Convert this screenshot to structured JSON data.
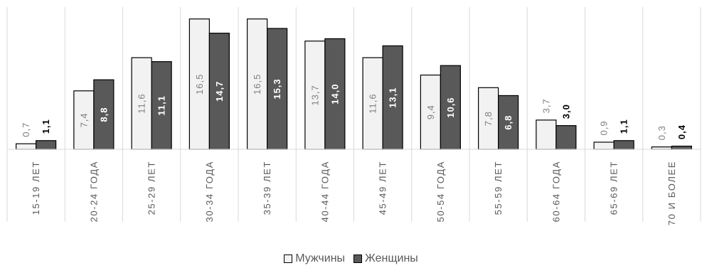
{
  "chart_data": {
    "type": "bar",
    "categories": [
      "15-19 ЛЕТ",
      "20-24 ГОДА",
      "25-29 ЛЕТ",
      "30-34 ГОДА",
      "35-39 ЛЕТ",
      "40-44 ГОДА",
      "45-49 ЛЕТ",
      "50-54 ГОДА",
      "55-59 ЛЕТ",
      "60-64 ГОДА",
      "65-69 ЛЕТ",
      "70 И БОЛЕЕ"
    ],
    "series": [
      {
        "name": "Мужчины",
        "color": "#f2f2f2",
        "values": [
          0.7,
          7.4,
          11.6,
          16.5,
          16.5,
          13.7,
          11.6,
          9.4,
          7.8,
          3.7,
          0.9,
          0.3
        ],
        "labels": [
          "0,7",
          "7,4",
          "11,6",
          "16,5",
          "16,5",
          "13,7",
          "11,6",
          "9,4",
          "7,8",
          "3,7",
          "0,9",
          "0,3"
        ]
      },
      {
        "name": "Женщины",
        "color": "#595959",
        "values": [
          1.1,
          8.8,
          11.1,
          14.7,
          15.3,
          14.0,
          13.1,
          10.6,
          6.8,
          3.0,
          1.1,
          0.4
        ],
        "labels": [
          "1,1",
          "8,8",
          "11,1",
          "14,7",
          "15,3",
          "14,0",
          "13,1",
          "10,6",
          "6,8",
          "3,0",
          "1,1",
          "0,4"
        ]
      }
    ],
    "ylim": [
      0,
      18
    ],
    "grid": false,
    "legend": "bottom"
  }
}
